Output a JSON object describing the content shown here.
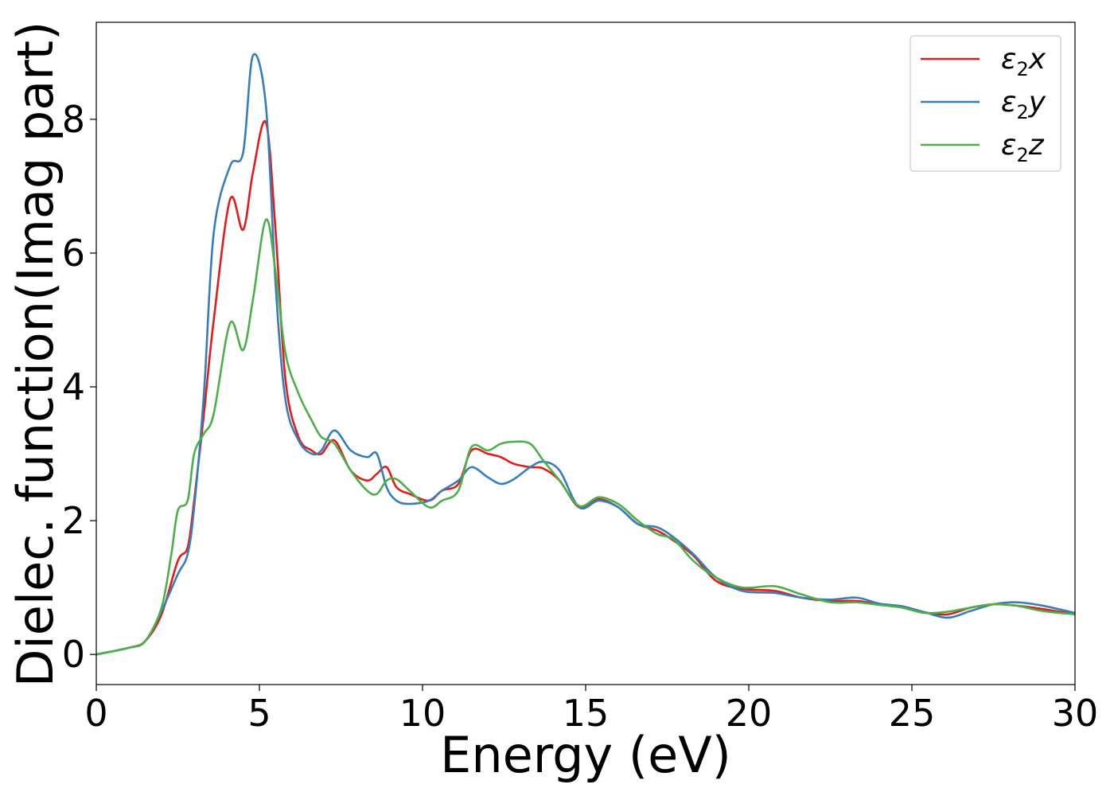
{
  "chart_data": {
    "type": "line",
    "xlabel": "Energy (eV)",
    "ylabel": "Dielec. function(Imag part)",
    "xlim": [
      0,
      30
    ],
    "ylim": [
      -0.45,
      9.45
    ],
    "xticks": [
      0,
      5,
      10,
      15,
      20,
      25,
      30
    ],
    "yticks": [
      0,
      2,
      4,
      6,
      8
    ],
    "grid": false,
    "legend_position": "top-right",
    "series": [
      {
        "name": "ε2x",
        "name_base": "ε",
        "name_sub": "2",
        "name_var": "x",
        "color": "#e41a1c",
        "x": [
          0,
          1,
          1.5,
          2,
          2.5,
          2.8,
          3,
          3.3,
          3.6,
          4.1,
          4.5,
          4.8,
          5.2,
          5.5,
          5.8,
          6.2,
          6.6,
          6.9,
          7.3,
          7.8,
          8.3,
          8.6,
          8.9,
          9.2,
          9.6,
          10.2,
          10.6,
          11.1,
          11.5,
          12,
          12.4,
          12.8,
          13.3,
          13.7,
          14.2,
          14.8,
          15.4,
          16,
          16.6,
          17.2,
          17.7,
          18.3,
          19,
          19.8,
          20.8,
          21.6,
          22.5,
          23.3,
          24,
          24.7,
          25.4,
          26.1,
          26.8,
          27.5,
          28.2,
          29,
          30
        ],
        "y": [
          0,
          0.1,
          0.2,
          0.6,
          1.4,
          1.6,
          2.3,
          3.6,
          5.0,
          6.8,
          6.35,
          7.2,
          7.95,
          6.3,
          4.1,
          3.25,
          3.05,
          3.0,
          3.2,
          2.75,
          2.6,
          2.7,
          2.8,
          2.5,
          2.4,
          2.3,
          2.45,
          2.55,
          3.05,
          3.0,
          2.95,
          2.85,
          2.8,
          2.78,
          2.6,
          2.2,
          2.32,
          2.2,
          1.95,
          1.85,
          1.7,
          1.48,
          1.1,
          0.98,
          0.95,
          0.85,
          0.8,
          0.8,
          0.75,
          0.72,
          0.63,
          0.6,
          0.7,
          0.75,
          0.73,
          0.68,
          0.6
        ]
      },
      {
        "name": "ε2y",
        "name_base": "ε",
        "name_sub": "2",
        "name_var": "y",
        "color": "#377eb8",
        "x": [
          0,
          1,
          1.5,
          2,
          2.5,
          2.8,
          3,
          3.3,
          3.6,
          4.1,
          4.5,
          4.8,
          5.2,
          5.5,
          5.8,
          6.2,
          6.6,
          6.9,
          7.3,
          7.8,
          8.3,
          8.6,
          8.9,
          9.2,
          9.6,
          10.2,
          10.6,
          11.1,
          11.5,
          12,
          12.4,
          12.8,
          13.3,
          13.7,
          14.2,
          14.8,
          15.4,
          16,
          16.6,
          17.2,
          17.7,
          18.3,
          19,
          19.8,
          20.8,
          21.6,
          22.5,
          23.3,
          24,
          24.7,
          25.4,
          26.1,
          26.8,
          27.5,
          28.2,
          29,
          30
        ],
        "y": [
          0,
          0.1,
          0.2,
          0.65,
          1.2,
          1.5,
          2.2,
          3.9,
          6.3,
          7.3,
          7.5,
          8.95,
          8.2,
          5.5,
          3.8,
          3.2,
          3.0,
          3.05,
          3.35,
          3.05,
          2.95,
          3.0,
          2.5,
          2.3,
          2.25,
          2.3,
          2.45,
          2.6,
          2.8,
          2.65,
          2.55,
          2.62,
          2.8,
          2.88,
          2.75,
          2.2,
          2.3,
          2.2,
          1.95,
          1.9,
          1.75,
          1.5,
          1.15,
          0.95,
          0.92,
          0.85,
          0.82,
          0.85,
          0.76,
          0.72,
          0.63,
          0.55,
          0.65,
          0.75,
          0.78,
          0.73,
          0.62
        ]
      },
      {
        "name": "ε2z",
        "name_base": "ε",
        "name_sub": "2",
        "name_var": "z",
        "color": "#4daf4a",
        "x": [
          0,
          1,
          1.5,
          2,
          2.3,
          2.5,
          2.8,
          3,
          3.3,
          3.6,
          4.1,
          4.5,
          4.8,
          5.2,
          5.5,
          5.8,
          6.2,
          6.6,
          6.9,
          7.3,
          7.8,
          8.3,
          8.6,
          8.9,
          9.2,
          9.6,
          10.2,
          10.6,
          11.1,
          11.5,
          12,
          12.4,
          12.8,
          13.3,
          13.7,
          14.2,
          14.8,
          15.4,
          16,
          16.6,
          17.2,
          17.7,
          18.3,
          19,
          19.8,
          20.8,
          21.6,
          22.5,
          23.3,
          24,
          24.7,
          25.4,
          26.1,
          26.8,
          27.5,
          28.2,
          29,
          30
        ],
        "y": [
          0,
          0.1,
          0.2,
          0.7,
          1.5,
          2.15,
          2.3,
          3.0,
          3.3,
          3.6,
          4.95,
          4.55,
          5.3,
          6.5,
          5.7,
          4.5,
          3.9,
          3.5,
          3.25,
          3.15,
          2.75,
          2.45,
          2.4,
          2.6,
          2.62,
          2.45,
          2.2,
          2.3,
          2.45,
          3.1,
          3.05,
          3.15,
          3.18,
          3.15,
          2.9,
          2.6,
          2.22,
          2.35,
          2.25,
          2.0,
          1.8,
          1.72,
          1.4,
          1.15,
          1.0,
          1.02,
          0.9,
          0.78,
          0.78,
          0.74,
          0.7,
          0.62,
          0.64,
          0.7,
          0.75,
          0.73,
          0.65,
          0.6
        ]
      }
    ]
  }
}
